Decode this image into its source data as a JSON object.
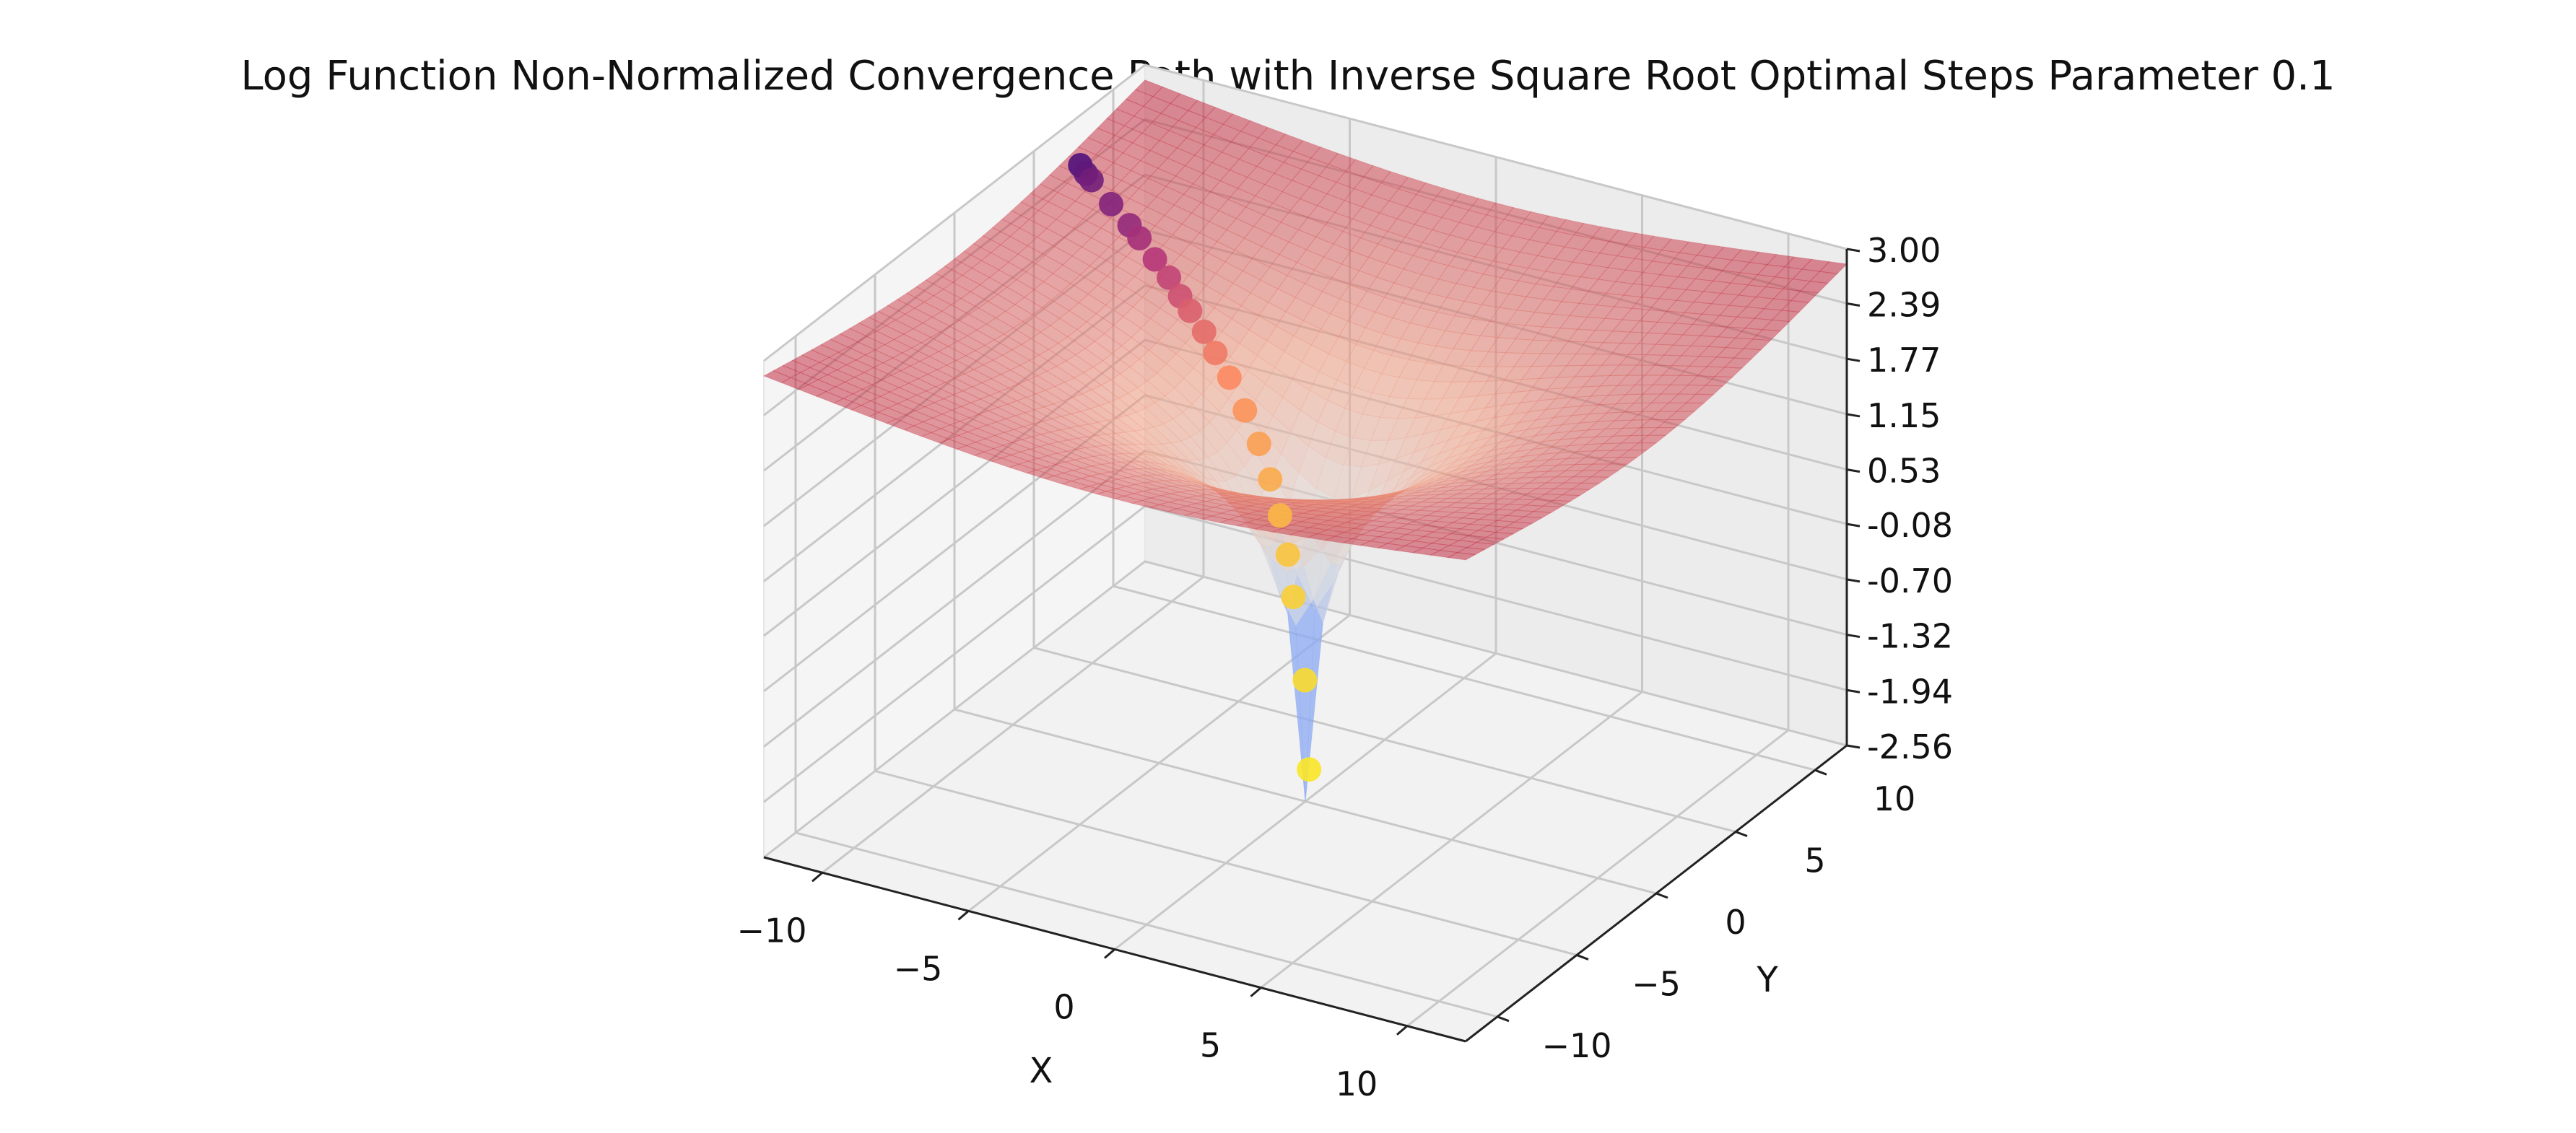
{
  "chart_data": {
    "type": "surface3d",
    "title": "Log Function Non-Normalized Convergence Path with Inverse Square Root Optimal Steps Parameter 0.1",
    "xlabel": "X",
    "ylabel": "Y",
    "zlabel": "",
    "xlim": [
      -12,
      12
    ],
    "ylim": [
      -12,
      12
    ],
    "zlim": [
      -2.56,
      3.0
    ],
    "x_ticks": [
      -10,
      -5,
      0,
      5,
      10
    ],
    "x_tick_labels": [
      "−10",
      "−5",
      "0",
      "5",
      "10"
    ],
    "y_ticks": [
      -10,
      -5,
      0,
      5,
      10
    ],
    "y_tick_labels": [
      "−10",
      "−5",
      "0",
      "5",
      "10"
    ],
    "z_ticks": [
      -2.56,
      -1.94,
      -1.32,
      -0.7,
      -0.08,
      0.53,
      1.15,
      1.77,
      2.39,
      3.0
    ],
    "z_tick_labels": [
      "-2.56",
      "-1.94",
      "-1.32",
      "-0.70",
      "-0.08",
      "0.53",
      "1.15",
      "1.77",
      "2.39",
      "3.00"
    ],
    "surface": {
      "function": "ln(x^2 + y^2)/2",
      "colormap": "coolwarm",
      "alpha": 0.5
    },
    "path": {
      "colormap": "magma",
      "points": [
        {
          "x": -11.5,
          "y": 7.0,
          "z": 2.61
        },
        {
          "x": -11.2,
          "y": 6.8,
          "z": 2.57
        },
        {
          "x": -10.9,
          "y": 6.6,
          "z": 2.55
        },
        {
          "x": -9.9,
          "y": 6.0,
          "z": 2.45
        },
        {
          "x": -9.0,
          "y": 5.5,
          "z": 2.36
        },
        {
          "x": -8.5,
          "y": 5.2,
          "z": 2.3
        },
        {
          "x": -7.7,
          "y": 4.7,
          "z": 2.2
        },
        {
          "x": -7.0,
          "y": 4.3,
          "z": 2.11
        },
        {
          "x": -6.4,
          "y": 3.9,
          "z": 2.01
        },
        {
          "x": -5.9,
          "y": 3.6,
          "z": 1.93
        },
        {
          "x": -5.2,
          "y": 3.2,
          "z": 1.81
        },
        {
          "x": -4.6,
          "y": 2.8,
          "z": 1.68
        },
        {
          "x": -3.9,
          "y": 2.4,
          "z": 1.52
        },
        {
          "x": -3.1,
          "y": 1.9,
          "z": 1.29
        },
        {
          "x": -2.4,
          "y": 1.5,
          "z": 1.03
        },
        {
          "x": -1.8,
          "y": 1.1,
          "z": 0.74
        },
        {
          "x": -1.3,
          "y": 0.8,
          "z": 0.42
        },
        {
          "x": -0.9,
          "y": 0.55,
          "z": 0.05
        },
        {
          "x": -0.6,
          "y": 0.35,
          "z": -0.37
        },
        {
          "x": -0.15,
          "y": 0.25,
          "z": -1.25
        },
        {
          "x": 0.1,
          "y": 0.05,
          "z": -2.2
        }
      ]
    }
  }
}
